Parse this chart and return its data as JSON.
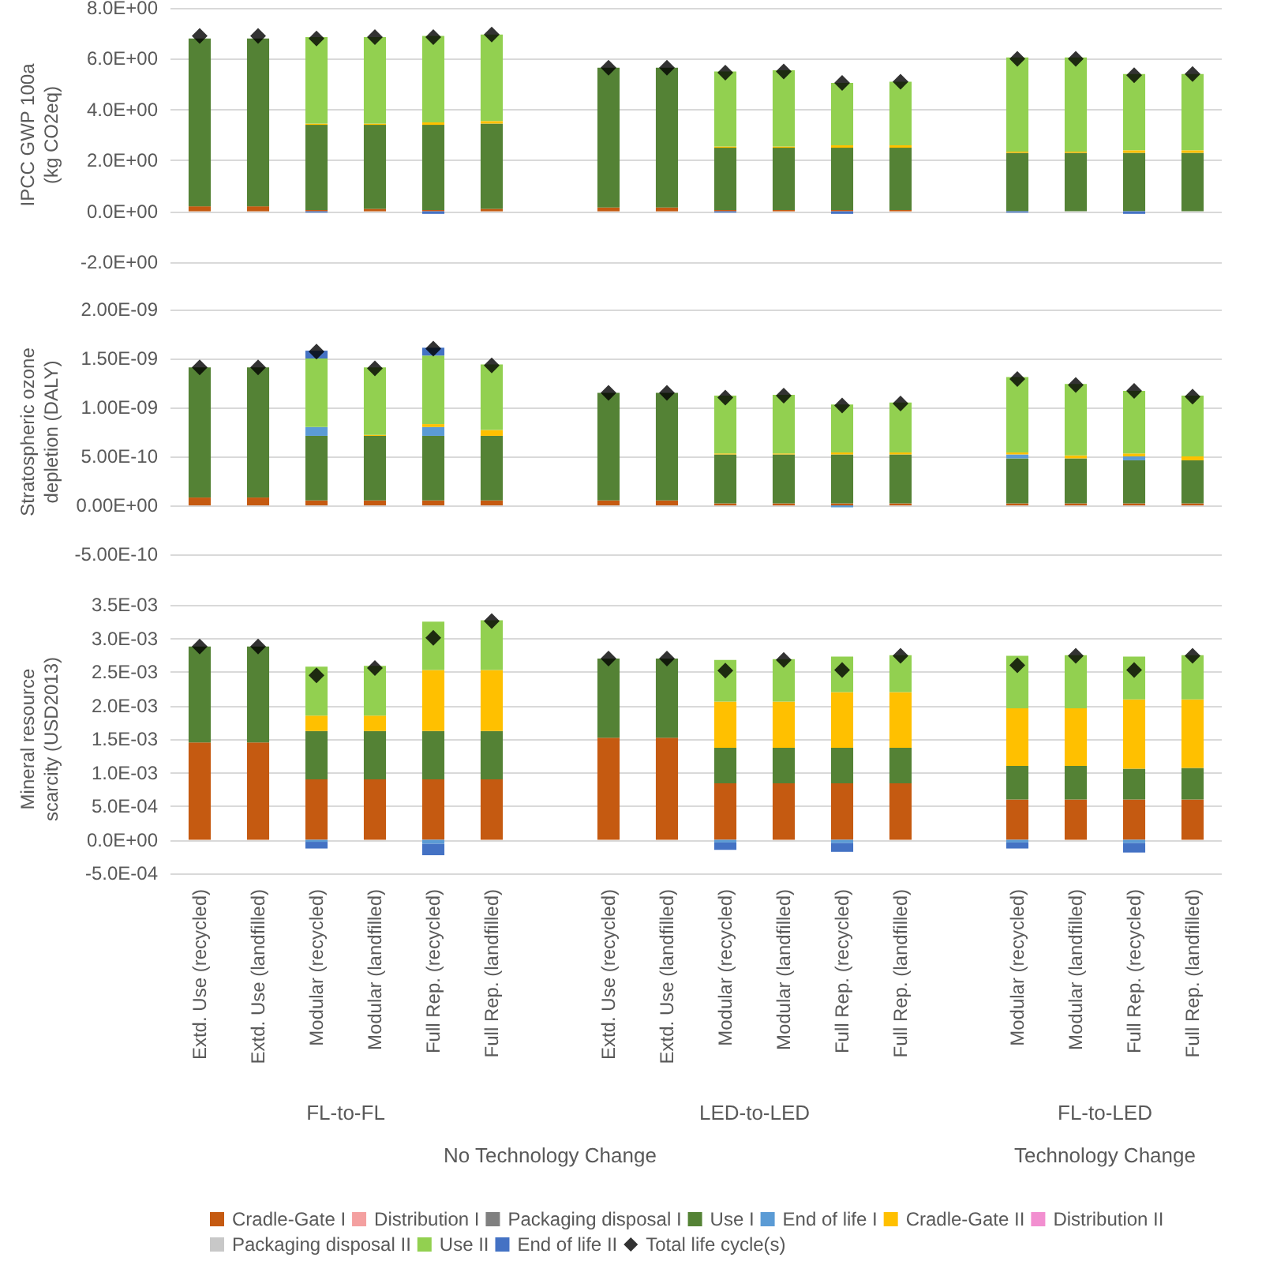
{
  "chart_data": [
    {
      "type": "bar",
      "stacked": true,
      "ylabel": "IPCC GWP 100a (kg CO2eq)",
      "grid": "y",
      "legend": false,
      "marker": "diamond",
      "categories": [
        null,
        null,
        null,
        null,
        null,
        null,
        null,
        null,
        null,
        null,
        null,
        null,
        null,
        null,
        null,
        null,
        null,
        null
      ],
      "ylim": [
        -2,
        8
      ],
      "yticks": [
        {
          "value": -2,
          "label": "-2.0E+00"
        },
        {
          "value": 0,
          "label": "0.0E+00"
        },
        {
          "value": 2,
          "label": "2.0E+00"
        },
        {
          "value": 4,
          "label": "4.0E+00"
        },
        {
          "value": 6,
          "label": "6.0E+00"
        },
        {
          "value": 8,
          "label": "8.0E+00"
        }
      ],
      "series": [
        {
          "color": "#c55a11",
          "values": [
            0.2,
            0.2,
            0.05,
            0.1,
            0.05,
            0.1,
            null,
            0.15,
            0.15,
            0.05,
            0.05,
            0.05,
            0.05,
            null,
            0,
            0,
            0,
            0
          ]
        },
        {
          "color": "#f4a0a0",
          "values": [
            0,
            0,
            0,
            0,
            0,
            0,
            null,
            0,
            0,
            0,
            0,
            0,
            0,
            null,
            0,
            0,
            0,
            0
          ]
        },
        {
          "color": "#808080",
          "values": [
            0,
            0,
            0,
            0,
            0,
            0,
            null,
            0,
            0,
            0,
            0,
            0,
            0,
            null,
            0,
            0,
            0,
            0
          ]
        },
        {
          "color": "#548235",
          "values": [
            6.6,
            6.6,
            3.35,
            3.3,
            3.35,
            3.35,
            null,
            5.5,
            5.5,
            2.45,
            2.45,
            2.45,
            2.45,
            null,
            2.3,
            2.3,
            2.3,
            2.3
          ]
        },
        {
          "color": "#5b9bd5",
          "values": [
            0,
            0,
            0,
            0,
            0,
            0,
            null,
            0,
            0,
            0,
            0,
            0,
            0,
            null,
            0,
            0,
            0,
            0
          ]
        },
        {
          "color": "#ffc000",
          "values": [
            0,
            0,
            0.05,
            0.05,
            0.1,
            0.1,
            null,
            0,
            0,
            0.05,
            0.05,
            0.1,
            0.1,
            null,
            0.05,
            0.05,
            0.1,
            0.1
          ]
        },
        {
          "color": "#f28fd0",
          "values": [
            0,
            0,
            0,
            0,
            0,
            0,
            null,
            0,
            0,
            0,
            0,
            0,
            0,
            null,
            0,
            0,
            0,
            0
          ]
        },
        {
          "color": "#c8c8c8",
          "values": [
            0,
            0,
            0,
            0,
            0,
            0,
            null,
            0,
            0,
            0,
            0,
            0,
            0,
            null,
            0,
            0,
            0,
            0
          ]
        },
        {
          "color": "#92d050",
          "values": [
            0,
            0,
            3.4,
            3.4,
            3.4,
            3.4,
            null,
            0,
            0,
            2.95,
            3.0,
            2.45,
            2.5,
            null,
            3.7,
            3.7,
            3.0,
            3.0
          ]
        },
        {
          "color": "#4472c4",
          "values": [
            0,
            0,
            -0.05,
            0,
            -0.1,
            0,
            null,
            0,
            0,
            -0.05,
            0,
            -0.1,
            0,
            null,
            -0.05,
            0,
            -0.1,
            0
          ]
        },
        {
          "type": "scatter",
          "color": "#000000",
          "values": [
            6.9,
            6.9,
            6.8,
            6.85,
            6.85,
            6.95,
            null,
            5.65,
            5.65,
            5.45,
            5.5,
            5.05,
            5.1,
            null,
            6.0,
            6.0,
            5.35,
            5.4
          ]
        }
      ]
    },
    {
      "type": "bar",
      "stacked": true,
      "ylabel": "Stratospheric ozone depletion (DALY)",
      "grid": "y",
      "legend": false,
      "marker": "diamond",
      "categories": [
        null,
        null,
        null,
        null,
        null,
        null,
        null,
        null,
        null,
        null,
        null,
        null,
        null,
        null,
        null,
        null,
        null,
        null
      ],
      "ylim": [
        -5e-10,
        2e-09
      ],
      "yticks": [
        {
          "value": -5e-10,
          "label": "-5.00E-10"
        },
        {
          "value": 0,
          "label": "0.00E+00"
        },
        {
          "value": 5e-10,
          "label": "5.00E-10"
        },
        {
          "value": 1e-09,
          "label": "1.00E-09"
        },
        {
          "value": 1.5e-09,
          "label": "1.50E-09"
        },
        {
          "value": 2e-09,
          "label": "2.00E-09"
        }
      ],
      "series": [
        {
          "color": "#c55a11",
          "values": [
            8e-11,
            8e-11,
            5e-11,
            5e-11,
            5e-11,
            5e-11,
            null,
            5e-11,
            5e-11,
            2e-11,
            2e-11,
            2e-11,
            2e-11,
            null,
            2e-11,
            2e-11,
            2e-11,
            2e-11
          ]
        },
        {
          "color": "#f4a0a0",
          "values": [
            0,
            0,
            0,
            0,
            0,
            0,
            null,
            0,
            0,
            0,
            0,
            0,
            0,
            null,
            0,
            0,
            0,
            0
          ]
        },
        {
          "color": "#808080",
          "values": [
            0,
            0,
            0,
            0,
            0,
            0,
            null,
            0,
            0,
            0,
            0,
            0,
            0,
            null,
            0,
            0,
            0,
            0
          ]
        },
        {
          "color": "#548235",
          "values": [
            1.33e-09,
            1.33e-09,
            6.6e-10,
            6.6e-10,
            6.6e-10,
            6.6e-10,
            null,
            1.1e-09,
            1.1e-09,
            5e-10,
            5e-10,
            5e-10,
            5e-10,
            null,
            4.6e-10,
            4.6e-10,
            4.4e-10,
            4.4e-10
          ]
        },
        {
          "color": "#5b9bd5",
          "values": [
            0,
            0,
            9e-11,
            0,
            9e-11,
            0,
            null,
            0,
            0,
            0,
            0,
            -2e-11,
            0,
            null,
            4e-11,
            0,
            4e-11,
            0
          ]
        },
        {
          "color": "#ffc000",
          "values": [
            0,
            0,
            0,
            1e-11,
            3e-11,
            6e-11,
            null,
            0,
            0,
            1e-11,
            1e-11,
            2e-11,
            2e-11,
            null,
            2e-11,
            3e-11,
            3e-11,
            4e-11
          ]
        },
        {
          "color": "#f28fd0",
          "values": [
            0,
            0,
            0,
            0,
            0,
            0,
            null,
            0,
            0,
            0,
            0,
            0,
            0,
            null,
            0,
            0,
            0,
            0
          ]
        },
        {
          "color": "#c8c8c8",
          "values": [
            0,
            0,
            0,
            0,
            0,
            0,
            null,
            0,
            0,
            0,
            0,
            0,
            0,
            null,
            0,
            0,
            0,
            0
          ]
        },
        {
          "color": "#92d050",
          "values": [
            0,
            0,
            7e-10,
            6.9e-10,
            7e-10,
            6.7e-10,
            null,
            0,
            0,
            5.9e-10,
            6e-10,
            4.9e-10,
            5.1e-10,
            null,
            7.7e-10,
            7.3e-10,
            6.4e-10,
            6.2e-10
          ]
        },
        {
          "color": "#4472c4",
          "values": [
            0,
            0,
            8e-11,
            0,
            8e-11,
            0,
            null,
            0,
            0,
            0,
            0,
            0,
            0,
            null,
            0,
            0,
            0,
            0
          ]
        },
        {
          "type": "scatter",
          "color": "#000000",
          "values": [
            1.41e-09,
            1.41e-09,
            1.57e-09,
            1.4e-09,
            1.6e-09,
            1.43e-09,
            null,
            1.15e-09,
            1.15e-09,
            1.1e-09,
            1.12e-09,
            1.02e-09,
            1.04e-09,
            null,
            1.29e-09,
            1.23e-09,
            1.17e-09,
            1.11e-09
          ]
        }
      ]
    },
    {
      "type": "bar",
      "stacked": true,
      "ylabel": "Mineral resource scarcity (USD2013)",
      "grid": "y",
      "legend": "bottom",
      "marker": "diamond",
      "categories": [
        "Extd. Use (recycled)",
        "Extd. Use (landfilled)",
        "Modular (recycled)",
        "Modular (landfilled)",
        "Full Rep. (recycled)",
        "Full Rep. (landfilled)",
        null,
        "Extd. Use (recycled)",
        "Extd. Use (landfilled)",
        "Modular (recycled)",
        "Modular (landfilled)",
        "Full Rep. (recycled)",
        "Full Rep. (landfilled)",
        null,
        "Modular (recycled)",
        "Modular (landfilled)",
        "Full Rep. (recycled)",
        "Full Rep. (landfilled)"
      ],
      "annotations": [
        "FL-to-FL",
        "LED-to-LED",
        "FL-to-LED",
        "No Technology Change",
        "Technology Change"
      ],
      "ylim": [
        -0.0005,
        0.0035
      ],
      "yticks": [
        {
          "value": -0.0005,
          "label": "-5.0E-04"
        },
        {
          "value": 0,
          "label": "0.0E+00"
        },
        {
          "value": 0.0005,
          "label": "5.0E-04"
        },
        {
          "value": 0.001,
          "label": "1.0E-03"
        },
        {
          "value": 0.0015,
          "label": "1.5E-03"
        },
        {
          "value": 0.002,
          "label": "2.0E-03"
        },
        {
          "value": 0.0025,
          "label": "2.5E-03"
        },
        {
          "value": 0.003,
          "label": "3.0E-03"
        },
        {
          "value": 0.0035,
          "label": "3.5E-03"
        }
      ],
      "series": [
        {
          "name": "Cradle-Gate I",
          "color": "#c55a11",
          "values": [
            0.00145,
            0.00145,
            0.0009,
            0.0009,
            0.0009,
            0.0009,
            null,
            0.00152,
            0.00152,
            0.00084,
            0.00084,
            0.00084,
            0.00084,
            null,
            0.0006,
            0.0006,
            0.0006,
            0.0006
          ]
        },
        {
          "name": "Distribution I",
          "color": "#f4a0a0",
          "values": [
            0,
            0,
            0,
            0,
            0,
            0,
            null,
            0,
            0,
            0,
            0,
            0,
            0,
            null,
            0,
            0,
            0,
            0
          ]
        },
        {
          "name": "Packaging disposal I",
          "color": "#808080",
          "values": [
            0,
            0,
            0,
            0,
            0,
            0,
            null,
            0,
            0,
            0,
            0,
            0,
            0,
            null,
            0,
            0,
            0,
            0
          ]
        },
        {
          "name": "Use I",
          "color": "#548235",
          "values": [
            0.00143,
            0.00143,
            0.00072,
            0.00072,
            0.00072,
            0.00072,
            null,
            0.00118,
            0.00118,
            0.00053,
            0.00053,
            0.00053,
            0.00053,
            null,
            0.0005,
            0.0005,
            0.00046,
            0.00047
          ]
        },
        {
          "name": "End of life I",
          "color": "#5b9bd5",
          "values": [
            0,
            0,
            -3e-05,
            0,
            -6e-05,
            0,
            null,
            0,
            0,
            -4e-05,
            0,
            -5e-05,
            0,
            null,
            -4e-05,
            0,
            -5e-05,
            0
          ]
        },
        {
          "name": "Cradle-Gate II",
          "color": "#ffc000",
          "values": [
            0,
            0,
            0.00023,
            0.00023,
            0.00091,
            0.00091,
            null,
            0,
            0,
            0.00069,
            0.00069,
            0.00083,
            0.00083,
            null,
            0.00086,
            0.00086,
            0.00103,
            0.00102
          ]
        },
        {
          "name": "Distribution II",
          "color": "#f28fd0",
          "values": [
            0,
            0,
            0,
            0,
            0,
            0,
            null,
            0,
            0,
            0,
            0,
            0,
            0,
            null,
            0,
            0,
            0,
            0
          ]
        },
        {
          "name": "Packaging disposal II",
          "color": "#c8c8c8",
          "values": [
            0,
            0,
            0,
            0,
            0,
            0,
            null,
            0,
            0,
            0,
            0,
            0,
            0,
            null,
            0,
            0,
            0,
            0
          ]
        },
        {
          "name": "Use II",
          "color": "#92d050",
          "values": [
            0,
            0,
            0.00073,
            0.00074,
            0.00072,
            0.00074,
            null,
            0,
            0,
            0.00062,
            0.00063,
            0.00053,
            0.00055,
            null,
            0.00078,
            0.00079,
            0.00064,
            0.00066
          ]
        },
        {
          "name": "End of life II",
          "color": "#4472c4",
          "values": [
            0,
            0,
            -0.0001,
            0,
            -0.00017,
            0,
            null,
            0,
            0,
            -0.00011,
            0,
            -0.00013,
            0,
            null,
            -9e-05,
            0,
            -0.00014,
            0
          ]
        },
        {
          "name": "Total life cycle(s)",
          "type": "scatter",
          "color": "#000000",
          "values": [
            0.00288,
            0.00288,
            0.00245,
            0.00256,
            0.00301,
            0.00326,
            null,
            0.0027,
            0.0027,
            0.00252,
            0.00268,
            0.00253,
            0.00274,
            null,
            0.0026,
            0.00274,
            0.00253,
            0.00274
          ]
        }
      ]
    }
  ]
}
